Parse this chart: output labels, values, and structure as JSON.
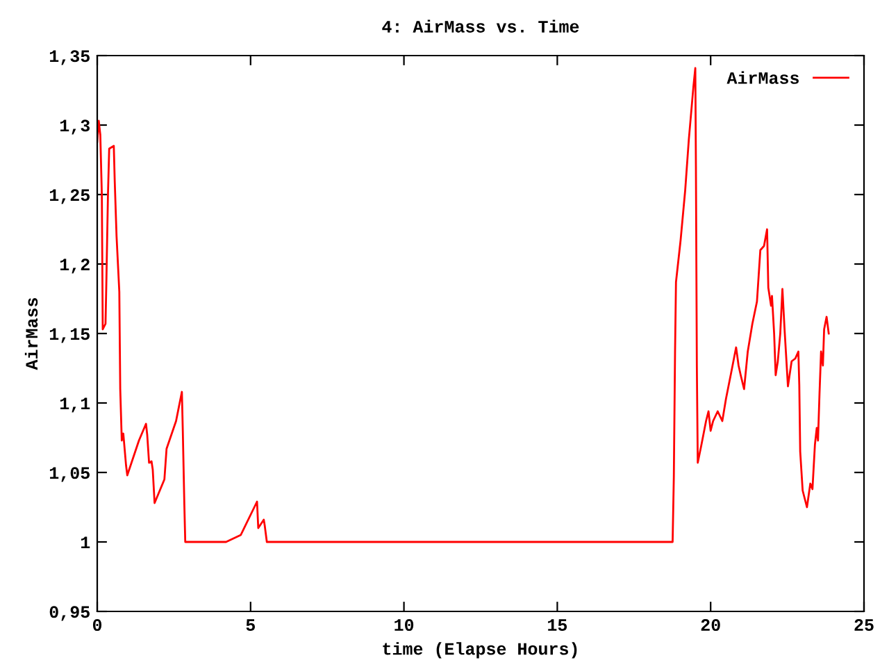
{
  "chart_data": {
    "type": "line",
    "title": "4: AirMass vs. Time",
    "xlabel": "time (Elapse Hours)",
    "ylabel": "AirMass",
    "series": [
      {
        "name": "AirMass",
        "color": "#ff0000",
        "x": [
          0,
          0.05,
          0.1,
          0.15,
          0.18,
          0.27,
          0.3,
          0.35,
          0.39,
          0.54,
          0.57,
          0.63,
          0.72,
          0.75,
          0.8,
          0.85,
          0.94,
          0.98,
          1.36,
          1.59,
          1.63,
          1.69,
          1.77,
          1.81,
          1.87,
          2.19,
          2.26,
          2.57,
          2.76,
          2.79,
          2.84,
          2.87,
          4.2,
          4.68,
          5.21,
          5.25,
          5.43,
          5.46,
          5.53,
          18.76,
          18.8,
          18.84,
          18.87,
          19.02,
          19.17,
          19.29,
          19.44,
          19.5,
          19.52,
          19.55,
          19.58,
          19.7,
          19.85,
          19.93,
          20.0,
          20.08,
          20.23,
          20.38,
          20.5,
          20.68,
          20.83,
          20.91,
          20.98,
          21.09,
          21.21,
          21.36,
          21.51,
          21.62,
          21.74,
          21.84,
          21.88,
          21.97,
          22.0,
          22.07,
          22.12,
          22.19,
          22.27,
          22.34,
          22.41,
          22.52,
          22.64,
          22.76,
          22.86,
          22.89,
          22.92,
          23.0,
          23.14,
          23.25,
          23.32,
          23.4,
          23.46,
          23.5,
          23.55,
          23.6,
          23.66,
          23.7,
          23.78,
          23.85
        ],
        "values": [
          1.288,
          1.303,
          1.293,
          1.25,
          1.153,
          1.157,
          1.19,
          1.25,
          1.283,
          1.285,
          1.26,
          1.22,
          1.18,
          1.11,
          1.073,
          1.078,
          1.055,
          1.048,
          1.073,
          1.085,
          1.077,
          1.057,
          1.058,
          1.052,
          1.028,
          1.045,
          1.067,
          1.087,
          1.108,
          1.08,
          1.027,
          1.0,
          1.0,
          1.005,
          1.029,
          1.01,
          1.016,
          1.012,
          1.0,
          1.0,
          1.047,
          1.138,
          1.187,
          1.217,
          1.253,
          1.29,
          1.328,
          1.341,
          1.27,
          1.127,
          1.057,
          1.07,
          1.087,
          1.094,
          1.08,
          1.087,
          1.094,
          1.087,
          1.103,
          1.123,
          1.14,
          1.127,
          1.12,
          1.11,
          1.137,
          1.157,
          1.173,
          1.21,
          1.213,
          1.225,
          1.183,
          1.17,
          1.177,
          1.15,
          1.12,
          1.13,
          1.15,
          1.182,
          1.153,
          1.112,
          1.13,
          1.132,
          1.137,
          1.113,
          1.065,
          1.037,
          1.025,
          1.042,
          1.038,
          1.07,
          1.082,
          1.073,
          1.107,
          1.137,
          1.127,
          1.153,
          1.162,
          1.15
        ]
      }
    ],
    "xlim": [
      0,
      25
    ],
    "xticks": [
      0,
      5,
      10,
      15,
      20,
      25
    ],
    "ylim": [
      0.95,
      1.35
    ],
    "yticks": [
      {
        "value": 0.95,
        "label": "0,95"
      },
      1,
      {
        "value": 1.05,
        "label": "1,05"
      },
      {
        "value": 1.1,
        "label": "1,1"
      },
      {
        "value": 1.15,
        "label": "1,15"
      },
      {
        "value": 1.2,
        "label": "1,2"
      },
      {
        "value": 1.25,
        "label": "1,25"
      },
      {
        "value": 1.3,
        "label": "1,3"
      },
      {
        "value": 1.35,
        "label": "1,35"
      }
    ],
    "grid": false,
    "legend": "top right",
    "marker": "none",
    "line_style": "solid"
  }
}
